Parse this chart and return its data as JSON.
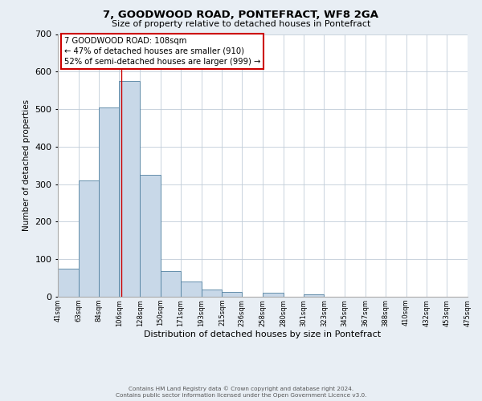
{
  "title_line1": "7, GOODWOOD ROAD, PONTEFRACT, WF8 2GA",
  "title_line2": "Size of property relative to detached houses in Pontefract",
  "xlabel": "Distribution of detached houses by size in Pontefract",
  "ylabel": "Number of detached properties",
  "bin_edges": [
    41,
    63,
    84,
    106,
    128,
    150,
    171,
    193,
    215,
    236,
    258,
    280,
    301,
    323,
    345,
    367,
    388,
    410,
    432,
    453,
    475
  ],
  "bar_heights": [
    75,
    310,
    505,
    575,
    325,
    68,
    40,
    20,
    12,
    0,
    10,
    0,
    7,
    0,
    0,
    0,
    0,
    0,
    0,
    0
  ],
  "bar_color": "#c8d8e8",
  "bar_edgecolor": "#5080a0",
  "vline_x": 108,
  "vline_color": "#cc0000",
  "ylim": [
    0,
    700
  ],
  "yticks": [
    0,
    100,
    200,
    300,
    400,
    500,
    600,
    700
  ],
  "annotation_title": "7 GOODWOOD ROAD: 108sqm",
  "annotation_line1": "← 47% of detached houses are smaller (910)",
  "annotation_line2": "52% of semi-detached houses are larger (999) →",
  "annotation_box_facecolor": "#ffffff",
  "annotation_box_edgecolor": "#cc0000",
  "footer_line1": "Contains HM Land Registry data © Crown copyright and database right 2024.",
  "footer_line2": "Contains public sector information licensed under the Open Government Licence v3.0.",
  "tick_labels": [
    "41sqm",
    "63sqm",
    "84sqm",
    "106sqm",
    "128sqm",
    "150sqm",
    "171sqm",
    "193sqm",
    "215sqm",
    "236sqm",
    "258sqm",
    "280sqm",
    "301sqm",
    "323sqm",
    "345sqm",
    "367sqm",
    "388sqm",
    "410sqm",
    "432sqm",
    "453sqm",
    "475sqm"
  ],
  "background_color": "#e8eef4",
  "plot_background_color": "#ffffff",
  "grid_color": "#c0ccd8"
}
